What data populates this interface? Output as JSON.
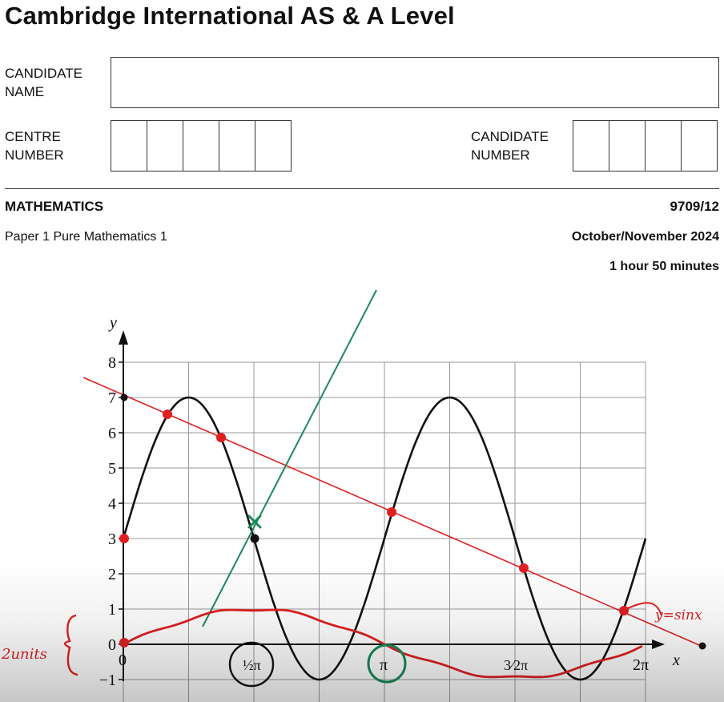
{
  "header": {
    "title": "Cambridge International AS & A Level",
    "candidate_name_label_line1": "CANDIDATE",
    "candidate_name_label_line2": "NAME",
    "centre_number_label_line1": "CENTRE",
    "centre_number_label_line2": "NUMBER",
    "candidate_number_label_line1": "CANDIDATE",
    "candidate_number_label_line2": "NUMBER",
    "centre_number_boxes": 5,
    "candidate_number_boxes": 4
  },
  "exam": {
    "subject": "MATHEMATICS",
    "code": "9709/12",
    "paper": "Paper 1 Pure Mathematics 1",
    "session": "October/November 2024",
    "duration": "1 hour 50 minutes"
  },
  "graph": {
    "y_axis_label": "y",
    "x_axis_label": "x",
    "y_ticks": [
      "8",
      "7",
      "6",
      "5",
      "4",
      "3",
      "2",
      "1",
      "0",
      "−1"
    ],
    "x_tick_zero": "0",
    "x_tick_half_pi": "½π",
    "x_tick_pi": "π",
    "x_tick_three_half_pi": "3⁄2π",
    "x_tick_two_pi": "2π",
    "annotation_curve": "y=sinx",
    "annotation_units": "2units",
    "colors": {
      "curve": "#111111",
      "red_ink": "#e02020",
      "green_ink": "#1a8a5a",
      "grid": "#9a9a9a"
    }
  },
  "chart_data": {
    "type": "line",
    "series": [
      {
        "name": "",
        "x": [
          0,
          0.785,
          1.571,
          2.356,
          3.142,
          3.927,
          4.712,
          5.498,
          6.283
        ],
        "y": [
          3,
          7,
          3,
          -1,
          3,
          7,
          3,
          -1,
          3
        ]
      },
      {
        "name": "y=sinx",
        "x": [
          0,
          0.785,
          1.571,
          2.356,
          3.142,
          3.927,
          4.712,
          5.498,
          6.283
        ],
        "y": [
          0,
          0.7,
          1,
          0.7,
          0,
          -0.7,
          -1,
          -0.7,
          0
        ]
      }
    ],
    "xlim": [
      0,
      6.283
    ],
    "ylim": [
      -1,
      8
    ]
  }
}
